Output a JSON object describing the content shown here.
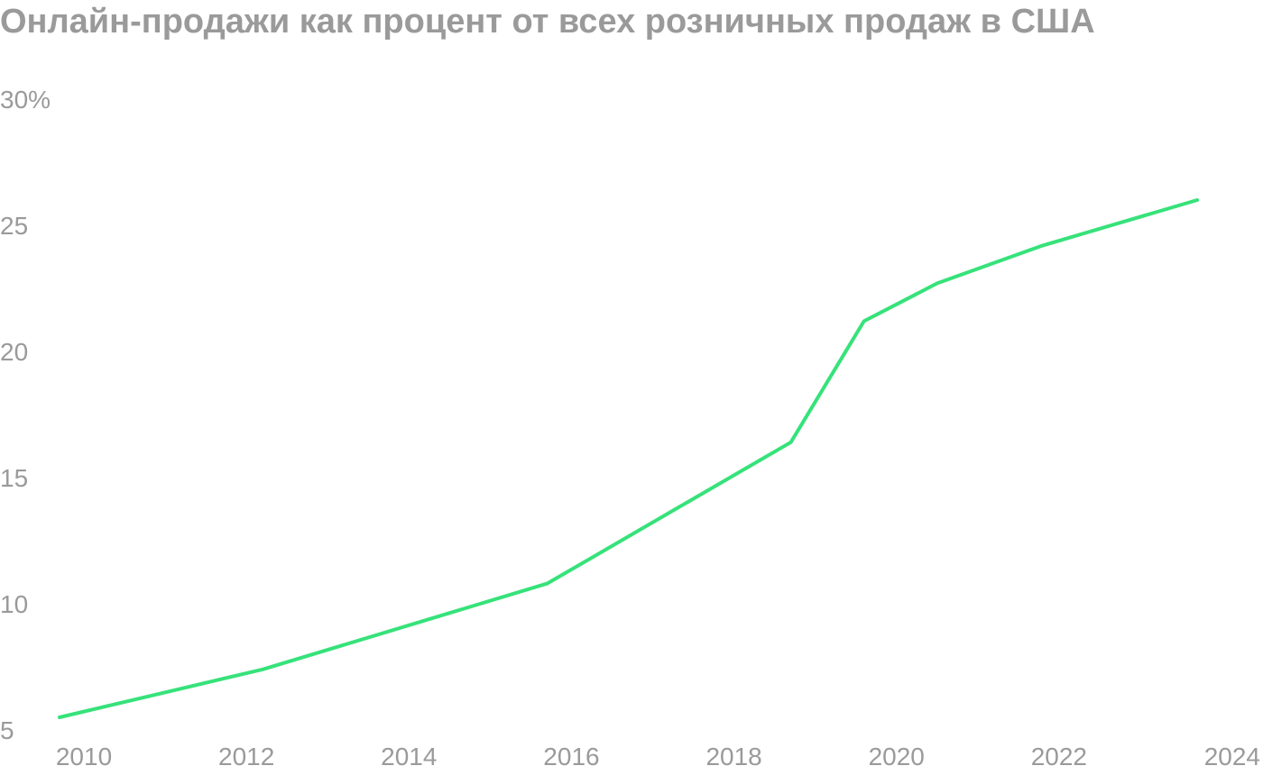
{
  "chart_data": {
    "type": "line",
    "title": "Онлайн-продажи как процент от всех розничных продаж в США",
    "xlabel": "",
    "ylabel": "",
    "xlim": [
      2009.7,
      2024
    ],
    "ylim": [
      5,
      30
    ],
    "x_ticks": [
      2010,
      2012,
      2014,
      2016,
      2018,
      2020,
      2022,
      2024
    ],
    "x_tick_labels": [
      "2010",
      "2012",
      "2014",
      "2016",
      "2018",
      "2020",
      "2022",
      "2024"
    ],
    "y_ticks": [
      5,
      10,
      15,
      20,
      25,
      30
    ],
    "y_tick_labels": [
      "5",
      "10",
      "15",
      "20",
      "25",
      "30%"
    ],
    "grid": false,
    "legend": "none",
    "series": [
      {
        "color": "#36e27a",
        "x": [
          2009.7,
          2012.2,
          2015.7,
          2018.7,
          2019.6,
          2020.5,
          2021.8,
          2023.7
        ],
        "y": [
          5.5,
          7.4,
          10.8,
          16.4,
          21.2,
          22.7,
          24.2,
          26.0
        ]
      }
    ]
  }
}
